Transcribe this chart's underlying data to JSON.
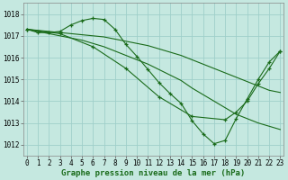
{
  "background_color": "#c5e8e0",
  "grid_color": "#9fcfca",
  "line_color": "#1a6b1a",
  "marker_color": "#1a6b1a",
  "xlabel": "Graphe pression niveau de la mer (hPa)",
  "xlabel_fontsize": 6.5,
  "tick_fontsize": 5.5,
  "ylim": [
    1011.5,
    1018.5
  ],
  "xlim": [
    -0.3,
    23.3
  ],
  "yticks": [
    1012,
    1013,
    1014,
    1015,
    1016,
    1017,
    1018
  ],
  "xticks": [
    0,
    1,
    2,
    3,
    4,
    5,
    6,
    7,
    8,
    9,
    10,
    11,
    12,
    13,
    14,
    15,
    16,
    17,
    18,
    19,
    20,
    21,
    22,
    23
  ],
  "series": [
    {
      "x": [
        0,
        1,
        2,
        3,
        4,
        5,
        6,
        7,
        8,
        9,
        10,
        11,
        12,
        13,
        14,
        15,
        16,
        17,
        18,
        19,
        20,
        21,
        22,
        23
      ],
      "y": [
        1017.3,
        1017.25,
        1017.2,
        1017.15,
        1017.1,
        1017.05,
        1017.0,
        1016.95,
        1016.85,
        1016.75,
        1016.65,
        1016.55,
        1016.4,
        1016.25,
        1016.1,
        1015.9,
        1015.7,
        1015.5,
        1015.3,
        1015.1,
        1014.9,
        1014.7,
        1014.5,
        1014.4
      ],
      "has_markers": false
    },
    {
      "x": [
        0,
        1,
        2,
        3,
        4,
        5,
        6,
        7,
        8,
        9,
        10,
        11,
        12,
        13,
        14,
        15,
        16,
        17,
        18,
        19,
        20,
        21,
        22,
        23
      ],
      "y": [
        1017.3,
        1017.2,
        1017.1,
        1017.0,
        1016.9,
        1016.8,
        1016.65,
        1016.5,
        1016.3,
        1016.1,
        1015.9,
        1015.7,
        1015.45,
        1015.2,
        1014.95,
        1014.6,
        1014.3,
        1014.0,
        1013.7,
        1013.4,
        1013.2,
        1013.0,
        1012.85,
        1012.7
      ],
      "has_markers": false
    },
    {
      "x": [
        0,
        1,
        2,
        3,
        4,
        5,
        6,
        7,
        8,
        9,
        10,
        11,
        12,
        13,
        14,
        15,
        16,
        17,
        18,
        19,
        20,
        21,
        22,
        23
      ],
      "y": [
        1017.3,
        1017.15,
        1017.15,
        1017.2,
        1017.5,
        1017.7,
        1017.8,
        1017.75,
        1017.3,
        1016.6,
        1016.05,
        1015.45,
        1014.85,
        1014.35,
        1013.9,
        1013.1,
        1012.5,
        1012.05,
        1012.2,
        1013.2,
        1014.1,
        1015.0,
        1015.8,
        1016.3
      ],
      "has_markers": true
    },
    {
      "x": [
        0,
        3,
        6,
        9,
        12,
        15,
        18,
        19,
        20,
        21,
        22,
        23
      ],
      "y": [
        1017.3,
        1017.1,
        1016.5,
        1015.5,
        1014.2,
        1013.3,
        1013.15,
        1013.5,
        1014.0,
        1014.8,
        1015.5,
        1016.3
      ],
      "has_markers": true
    }
  ]
}
